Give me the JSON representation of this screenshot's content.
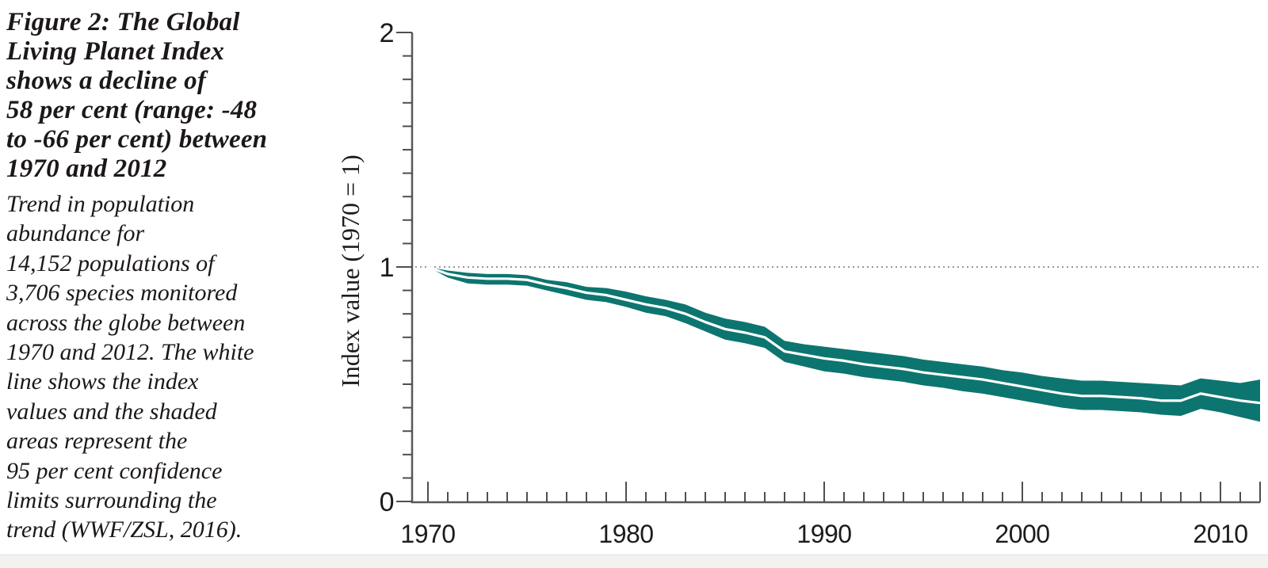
{
  "figure": {
    "title": "Figure 2: The Global\nLiving Planet Index\nshows a decline of\n58 per cent (range: -48\nto -66 per cent) between\n1970 and 2012",
    "description": "Trend in population\nabundance for\n14,152 populations of\n3,706 species monitored\nacross the globe between\n1970 and 2012. The white\nline shows the index\nvalues and the shaded\nareas represent the\n95 per cent confidence\nlimits surrounding the\ntrend (WWF/ZSL, 2016)."
  },
  "chart_data": {
    "type": "area",
    "title": "",
    "xlabel": "",
    "ylabel": "Index value (1970 = 1)",
    "xlim": [
      1970,
      2012
    ],
    "ylim": [
      0,
      2
    ],
    "grid": false,
    "legend": "none",
    "reference_line_y": 1,
    "minor_x_step": 1,
    "minor_y_step": 0.1,
    "x_tick_years": [
      1970,
      1980,
      1990,
      2000,
      2010
    ],
    "x_tick_labels": [
      "1970",
      "1980",
      "1990",
      "2000",
      "2010"
    ],
    "y_tick_values": [
      0,
      1,
      2
    ],
    "y_tick_labels": [
      "0",
      "1",
      "2"
    ],
    "x": [
      1970,
      1971,
      1972,
      1973,
      1974,
      1975,
      1976,
      1977,
      1978,
      1979,
      1980,
      1981,
      1982,
      1983,
      1984,
      1985,
      1986,
      1987,
      1988,
      1989,
      1990,
      1991,
      1992,
      1993,
      1994,
      1995,
      1996,
      1997,
      1998,
      1999,
      2000,
      2001,
      2002,
      2003,
      2004,
      2005,
      2006,
      2007,
      2008,
      2009,
      2010,
      2011,
      2012
    ],
    "series": [
      {
        "name": "Global Living Planet Index",
        "type": "line",
        "color": "#FFFFFF",
        "values": [
          1.0,
          0.97,
          0.955,
          0.95,
          0.95,
          0.945,
          0.925,
          0.91,
          0.89,
          0.88,
          0.86,
          0.84,
          0.825,
          0.8,
          0.765,
          0.735,
          0.72,
          0.7,
          0.64,
          0.625,
          0.61,
          0.6,
          0.585,
          0.575,
          0.565,
          0.55,
          0.54,
          0.53,
          0.52,
          0.505,
          0.49,
          0.475,
          0.46,
          0.45,
          0.45,
          0.445,
          0.44,
          0.43,
          0.43,
          0.46,
          0.445,
          0.43,
          0.42
        ]
      },
      {
        "name": "95 per cent confidence limits",
        "type": "band",
        "color": "#0D756F",
        "upper": [
          1.0,
          0.985,
          0.975,
          0.97,
          0.97,
          0.965,
          0.945,
          0.935,
          0.915,
          0.91,
          0.895,
          0.875,
          0.86,
          0.84,
          0.805,
          0.78,
          0.765,
          0.745,
          0.685,
          0.67,
          0.66,
          0.65,
          0.64,
          0.63,
          0.62,
          0.605,
          0.595,
          0.585,
          0.575,
          0.56,
          0.55,
          0.535,
          0.525,
          0.515,
          0.515,
          0.51,
          0.505,
          0.5,
          0.495,
          0.525,
          0.515,
          0.505,
          0.52
        ],
        "lower": [
          1.0,
          0.955,
          0.93,
          0.925,
          0.925,
          0.92,
          0.9,
          0.88,
          0.86,
          0.85,
          0.83,
          0.805,
          0.79,
          0.76,
          0.725,
          0.69,
          0.675,
          0.655,
          0.595,
          0.575,
          0.555,
          0.545,
          0.53,
          0.52,
          0.51,
          0.495,
          0.485,
          0.47,
          0.46,
          0.445,
          0.43,
          0.415,
          0.4,
          0.39,
          0.39,
          0.385,
          0.38,
          0.37,
          0.365,
          0.395,
          0.38,
          0.36,
          0.34
        ]
      }
    ],
    "colors": {
      "band": "#0D756F",
      "index_line": "#FFFFFF",
      "axis": "#59595B",
      "tick": "#4F4F52",
      "tick_label": "#1D1B1C",
      "dotted_reference": "#999999"
    }
  }
}
